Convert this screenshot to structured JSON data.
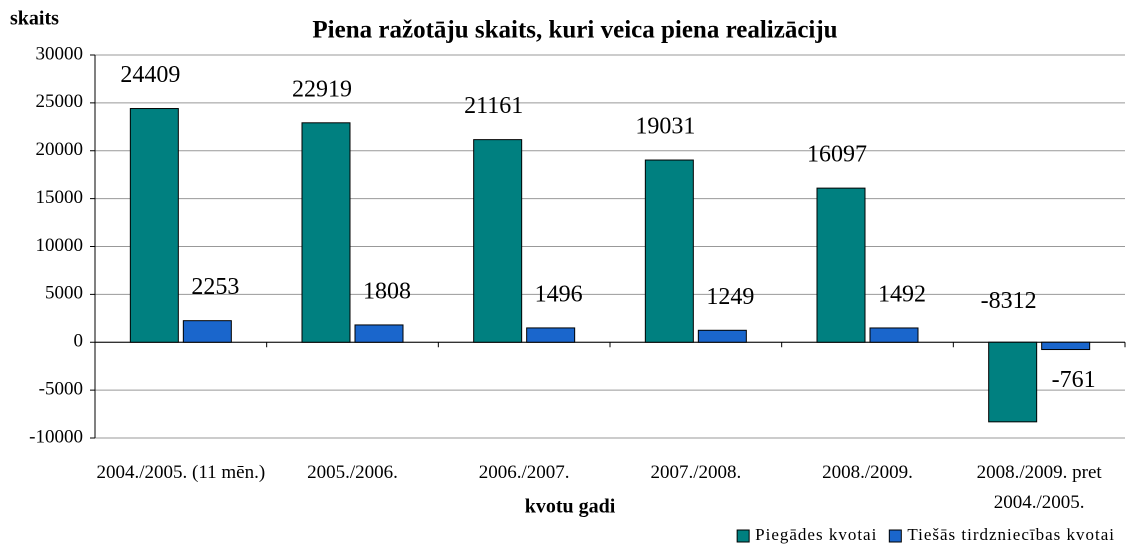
{
  "chart_data": {
    "type": "bar",
    "title": "Piena ražotāju skaits, kuri veica piena realizāciju",
    "y_label": "skaits",
    "x_label": "kvotu gadi",
    "categories": [
      "2004./2005. (11 mēn.)",
      "2005./2006.",
      "2006./2007.",
      "2007./2008.",
      "2008./2009.",
      "2008./2009. pret 2004./2005."
    ],
    "series": [
      {
        "name": "Piegādes kvotai",
        "color": "#008080",
        "values": [
          24409,
          22919,
          21161,
          19031,
          16097,
          -8312
        ]
      },
      {
        "name": "Tiešās tirdzniecības kvotai",
        "color": "#1a66cc",
        "values": [
          2253,
          1808,
          1496,
          1249,
          1492,
          -761
        ]
      }
    ],
    "ylim": [
      -10000,
      30000
    ],
    "yticks": [
      -10000,
      -5000,
      0,
      5000,
      10000,
      15000,
      20000,
      25000,
      30000
    ],
    "grid": true,
    "legend": "bottom-right"
  }
}
